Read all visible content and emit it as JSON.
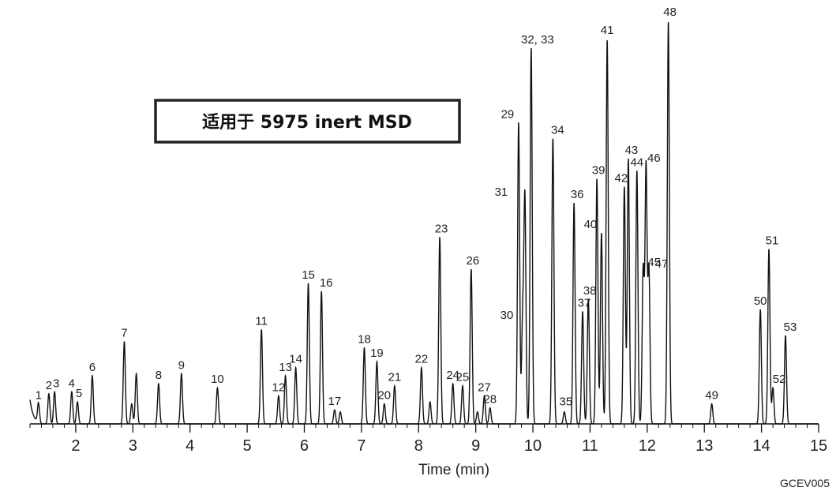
{
  "chart_data": {
    "type": "line",
    "title": "适用于 5975 inert MSD",
    "xlabel": "Time (min)",
    "ylabel": "",
    "xlim": [
      1.2,
      15.0
    ],
    "ylim": [
      0,
      100
    ],
    "x_ticks": [
      2,
      3,
      4,
      5,
      6,
      7,
      8,
      9,
      10,
      11,
      12,
      13,
      14,
      15
    ],
    "grid": false,
    "legend": "none",
    "line_color": "#111111",
    "figure_code": "GCEV005",
    "peaks": [
      {
        "label": "1",
        "x": 1.35,
        "y": 5
      },
      {
        "label": "2",
        "x": 1.53,
        "y": 7.5
      },
      {
        "label": "3",
        "x": 1.63,
        "y": 8
      },
      {
        "label": "4",
        "x": 1.93,
        "y": 8
      },
      {
        "label": "5",
        "x": 2.03,
        "y": 5.5
      },
      {
        "label": "6",
        "x": 2.29,
        "y": 12
      },
      {
        "label": "7",
        "x": 2.85,
        "y": 20.5
      },
      {
        "label": "",
        "x": 2.98,
        "y": 5
      },
      {
        "label": "",
        "x": 3.06,
        "y": 12.5
      },
      {
        "label": "8",
        "x": 3.45,
        "y": 10
      },
      {
        "label": "9",
        "x": 3.85,
        "y": 12.5
      },
      {
        "label": "10",
        "x": 4.48,
        "y": 9
      },
      {
        "label": "11",
        "x": 5.25,
        "y": 23.5
      },
      {
        "label": "12",
        "x": 5.55,
        "y": 7
      },
      {
        "label": "13",
        "x": 5.67,
        "y": 12
      },
      {
        "label": "14",
        "x": 5.85,
        "y": 14
      },
      {
        "label": "15",
        "x": 6.07,
        "y": 35
      },
      {
        "label": "16",
        "x": 6.3,
        "y": 33
      },
      {
        "label": "17",
        "x": 6.53,
        "y": 3.5
      },
      {
        "label": "",
        "x": 6.63,
        "y": 3
      },
      {
        "label": "18",
        "x": 7.05,
        "y": 19
      },
      {
        "label": "19",
        "x": 7.27,
        "y": 15.5
      },
      {
        "label": "20",
        "x": 7.4,
        "y": 5
      },
      {
        "label": "21",
        "x": 7.58,
        "y": 9.5
      },
      {
        "label": "22",
        "x": 8.05,
        "y": 14
      },
      {
        "label": "",
        "x": 8.2,
        "y": 5.5
      },
      {
        "label": "23",
        "x": 8.37,
        "y": 46.5
      },
      {
        "label": "24",
        "x": 8.6,
        "y": 10
      },
      {
        "label": "25",
        "x": 8.77,
        "y": 9.5
      },
      {
        "label": "26",
        "x": 8.92,
        "y": 38.5
      },
      {
        "label": "",
        "x": 9.03,
        "y": 3
      },
      {
        "label": "27",
        "x": 9.15,
        "y": 7
      },
      {
        "label": "28",
        "x": 9.25,
        "y": 4
      },
      {
        "label": "29",
        "x": 9.75,
        "y": 75
      },
      {
        "label": "30",
        "x": 9.82,
        "y": 25
      },
      {
        "label": "31",
        "x": 9.86,
        "y": 56
      },
      {
        "label": "32, 33",
        "x": 9.97,
        "y": 93.5
      },
      {
        "label": "34",
        "x": 10.35,
        "y": 71
      },
      {
        "label": "35",
        "x": 10.55,
        "y": 3
      },
      {
        "label": "36",
        "x": 10.72,
        "y": 55
      },
      {
        "label": "37",
        "x": 10.87,
        "y": 28
      },
      {
        "label": "38",
        "x": 10.97,
        "y": 31
      },
      {
        "label": "39",
        "x": 11.12,
        "y": 61
      },
      {
        "label": "40",
        "x": 11.2,
        "y": 47.5
      },
      {
        "label": "41",
        "x": 11.3,
        "y": 95.5
      },
      {
        "label": "42",
        "x": 11.6,
        "y": 59
      },
      {
        "label": "43",
        "x": 11.67,
        "y": 66
      },
      {
        "label": "44",
        "x": 11.82,
        "y": 63
      },
      {
        "label": "45",
        "x": 11.93,
        "y": 38.5
      },
      {
        "label": "46",
        "x": 11.98,
        "y": 64
      },
      {
        "label": "47",
        "x": 12.03,
        "y": 38.5
      },
      {
        "label": "48",
        "x": 12.37,
        "y": 100
      },
      {
        "label": "49",
        "x": 13.13,
        "y": 5
      },
      {
        "label": "50",
        "x": 13.98,
        "y": 28.5
      },
      {
        "label": "51",
        "x": 14.13,
        "y": 43.5
      },
      {
        "label": "52",
        "x": 14.2,
        "y": 9
      },
      {
        "label": "53",
        "x": 14.42,
        "y": 22
      }
    ]
  }
}
